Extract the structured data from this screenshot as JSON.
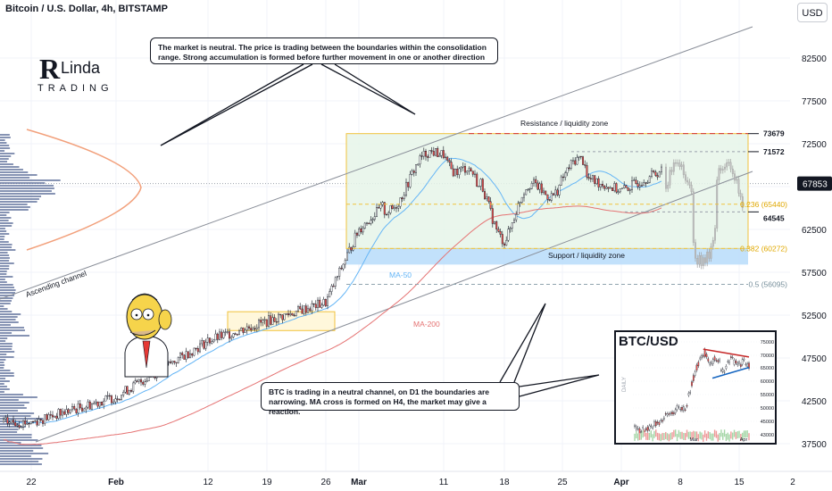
{
  "header": {
    "title": "Bitcoin / U.S. Dollar, 4h, BITSTAMP",
    "currency_button": "USD"
  },
  "logo": {
    "brand": "RLinda",
    "subtitle": "TRADING"
  },
  "callouts": {
    "top": "The market is neutral. The price is trading between the boundaries within the consolidation range. Strong accumulation is formed before further movement in one or another direction",
    "bottom": "BTC is trading in a neutral channel, on D1 the boundaries are narrowing. MA cross is formed on H4, the market may give a reaction."
  },
  "colors": {
    "up": "#26a69a",
    "down": "#ef5350",
    "candle": "#131722",
    "resistance": "#d32f2f",
    "fib": "#f0c23c",
    "zone_fill": "#e6f5e9",
    "support_fill": "#bbdefb",
    "ma50": "#64b5f6",
    "ma200": "#e57373",
    "volume_profile": "#5d6f99"
  },
  "chart_data": {
    "type": "candlestick",
    "symbol": "Bitcoin / U.S. Dollar",
    "timeframe": "4h",
    "exchange": "BITSTAMP",
    "y_axis": {
      "range": [
        35000,
        87500
      ],
      "ticks": [
        37500,
        42500,
        47500,
        52500,
        57500,
        62500,
        67500,
        72500,
        77500,
        82500
      ]
    },
    "x_axis": {
      "ticks": [
        "22",
        "Feb",
        "12",
        "19",
        "26",
        "Mar",
        "11",
        "18",
        "25",
        "Apr",
        "8",
        "15",
        "2"
      ]
    },
    "current_price": "67853",
    "levels": [
      {
        "name": "resistance",
        "value": 73679,
        "label": "73679"
      },
      {
        "name": "level",
        "value": 71572,
        "label": "71572"
      },
      {
        "name": "level",
        "value": 64545,
        "label": "64545"
      },
      {
        "name": "fib_0.236",
        "value": 65440,
        "label": "0.236 (65440)"
      },
      {
        "name": "fib_0.382",
        "value": 60272,
        "label": "0.382 (60272)"
      },
      {
        "name": "fib_0.5",
        "value": 56095,
        "label": "0.5 (56095)"
      }
    ],
    "annotations": {
      "resistance": "Resistance / liquidity zone",
      "support": "Support / liquidity zone",
      "channel": "Ascending channel",
      "ma50": "MA-50",
      "ma200": "MA-200"
    },
    "price_path": [
      [
        "22",
        40000
      ],
      [
        "Feb",
        43000
      ],
      [
        "12",
        49500
      ],
      [
        "19",
        51800
      ],
      [
        "26",
        54000
      ],
      [
        "Mar",
        62500
      ],
      [
        "11",
        72000
      ],
      [
        "18",
        63000
      ],
      [
        "25",
        69500
      ],
      [
        "Apr",
        67000
      ],
      [
        "8",
        70500
      ],
      [
        "15",
        65500
      ],
      [
        "2",
        67853
      ]
    ]
  },
  "inset": {
    "title": "BTC/USD",
    "side_label": "DAILY",
    "y_ticks": [
      "75000",
      "70000",
      "65000",
      "60000",
      "55000",
      "50000",
      "45000",
      "43000"
    ],
    "x_ticks": [
      "Mar",
      "Apr"
    ]
  }
}
